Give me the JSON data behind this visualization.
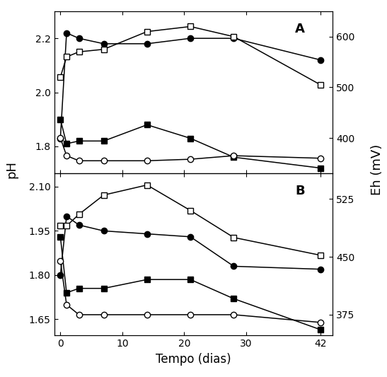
{
  "panel_A": {
    "x": [
      0,
      1,
      3,
      7,
      14,
      21,
      28,
      42
    ],
    "pH_filled_circle": [
      1.83,
      2.22,
      2.2,
      2.18,
      2.18,
      2.2,
      2.2,
      2.12
    ],
    "pH_filled_square": [
      1.9,
      1.81,
      1.82,
      1.82,
      1.88,
      1.83,
      1.76,
      1.72
    ],
    "Eh_open_square": [
      520,
      560,
      570,
      575,
      610,
      620,
      600,
      505
    ],
    "Eh_open_circle": [
      400,
      365,
      355,
      355,
      355,
      358,
      365,
      360
    ],
    "pH_ylim": [
      1.7,
      2.3
    ],
    "pH_yticks": [
      1.8,
      2.0,
      2.2
    ],
    "Eh_ylim": [
      330,
      650
    ],
    "Eh_yticks": [
      400,
      500,
      600
    ],
    "label": "A"
  },
  "panel_B": {
    "x": [
      0,
      1,
      3,
      7,
      14,
      21,
      28,
      42
    ],
    "pH_filled_circle": [
      1.8,
      2.0,
      1.97,
      1.95,
      1.94,
      1.93,
      1.83,
      1.82
    ],
    "pH_filled_square": [
      1.93,
      1.74,
      1.755,
      1.755,
      1.785,
      1.785,
      1.72,
      1.615
    ],
    "Eh_open_square": [
      490,
      490,
      505,
      530,
      543,
      510,
      475,
      452
    ],
    "Eh_open_circle": [
      445,
      388,
      375,
      375,
      375,
      375,
      375,
      365
    ],
    "pH_ylim": [
      1.595,
      2.145
    ],
    "pH_yticks": [
      1.65,
      1.8,
      1.95,
      2.1
    ],
    "Eh_ylim": [
      348,
      558
    ],
    "Eh_yticks": [
      375,
      450,
      525
    ],
    "label": "B"
  },
  "xlabel": "Tempo (dias)",
  "ylabel": "pH",
  "ylabel_right": "Eh (mV)",
  "figure_bg": "#ffffff",
  "marker_size": 6,
  "line_width": 1.1
}
